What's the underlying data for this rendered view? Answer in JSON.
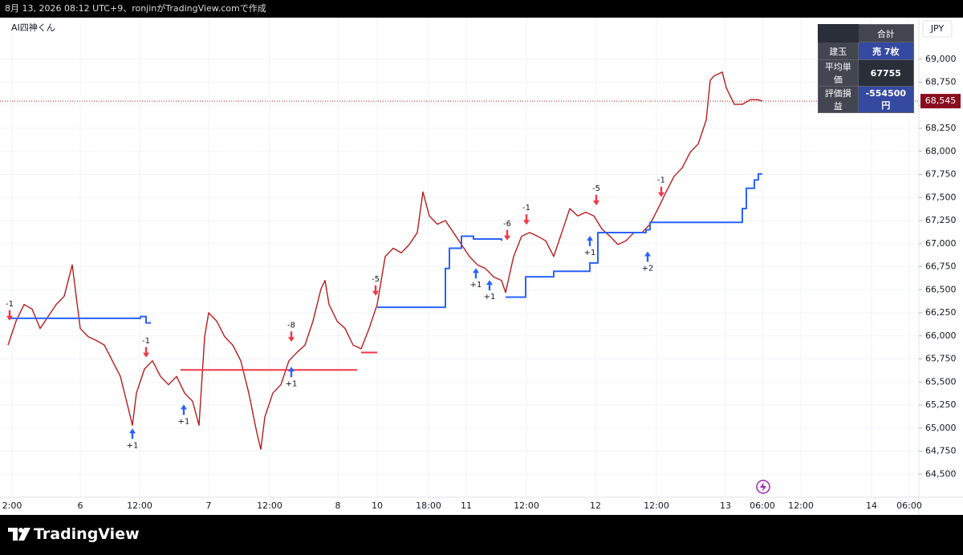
{
  "header": "8月 13, 2026 08:12 UTC+9、ronjinがTradingView.comで作成",
  "footer_brand": "TradingView",
  "chart_data": {
    "type": "line",
    "title": "AI四神くん",
    "currency": "JPY",
    "grid": true,
    "xlim": [
      0,
      229
    ],
    "xticks": [
      {
        "value": 3,
        "label": "2:00"
      },
      {
        "value": 20,
        "label": "6"
      },
      {
        "value": 34.8,
        "label": "12:00"
      },
      {
        "value": 52,
        "label": "7"
      },
      {
        "value": 67.2,
        "label": "12:00"
      },
      {
        "value": 84.2,
        "label": "8"
      },
      {
        "value": 94,
        "label": "10"
      },
      {
        "value": 106.8,
        "label": "18:00"
      },
      {
        "value": 116.2,
        "label": "11"
      },
      {
        "value": 131.2,
        "label": "12:00"
      },
      {
        "value": 148.4,
        "label": "12"
      },
      {
        "value": 163.6,
        "label": "12:00"
      },
      {
        "value": 180.8,
        "label": "13"
      },
      {
        "value": 190,
        "label": "06:00"
      },
      {
        "value": 199.6,
        "label": "12:00"
      },
      {
        "value": 217.2,
        "label": "14"
      },
      {
        "value": 226.6,
        "label": "06:00"
      }
    ],
    "ylim": [
      64250,
      69450
    ],
    "yticks": [
      {
        "value": 64500,
        "label": "64,500"
      },
      {
        "value": 64750,
        "label": "64,750"
      },
      {
        "value": 65000,
        "label": "65,000"
      },
      {
        "value": 65250,
        "label": "65,250"
      },
      {
        "value": 65500,
        "label": "65,500"
      },
      {
        "value": 65750,
        "label": "65,750"
      },
      {
        "value": 66000,
        "label": "66,000"
      },
      {
        "value": 66250,
        "label": "66,250"
      },
      {
        "value": 66500,
        "label": "66,500"
      },
      {
        "value": 66750,
        "label": "66,750"
      },
      {
        "value": 67000,
        "label": "67,000"
      },
      {
        "value": 67250,
        "label": "67,250"
      },
      {
        "value": 67500,
        "label": "67,500"
      },
      {
        "value": 67750,
        "label": "67,750"
      },
      {
        "value": 68000,
        "label": "68,000"
      },
      {
        "value": 68250,
        "label": "68,250"
      },
      {
        "value": 68500,
        "label": "68,500"
      },
      {
        "value": 68750,
        "label": "68,750"
      },
      {
        "value": 69000,
        "label": "69,000"
      }
    ],
    "series": [
      {
        "color": "#b71c1c",
        "step": false,
        "x": [
          2,
          4,
          6,
          8,
          10,
          12,
          14,
          16,
          18,
          20,
          22,
          24,
          26,
          28,
          30,
          32,
          33,
          34,
          36,
          38,
          40,
          42,
          44,
          46,
          48,
          49.6,
          51,
          52,
          54,
          56,
          58,
          60,
          62,
          64,
          65,
          66,
          68,
          70,
          72,
          74,
          76,
          78,
          80,
          81,
          82,
          84,
          86,
          88,
          90,
          92,
          94,
          96,
          98,
          100,
          102,
          104,
          105.4,
          107,
          109,
          111,
          113,
          115,
          117,
          119,
          121,
          123,
          125,
          126,
          128,
          130,
          132,
          134,
          136,
          138,
          140,
          142,
          144,
          146,
          148,
          150,
          152,
          154,
          156,
          158,
          160,
          162,
          164,
          166,
          168,
          170,
          172,
          174,
          176,
          177,
          178,
          180,
          181,
          183,
          185,
          187,
          189,
          190
        ],
        "values": [
          65900,
          66160,
          66340,
          66290,
          66080,
          66210,
          66340,
          66430,
          66770,
          66080,
          65990,
          65950,
          65900,
          65730,
          65560,
          65210,
          65030,
          65380,
          65640,
          65730,
          65560,
          65470,
          65560,
          65380,
          65290,
          65030,
          65990,
          66250,
          66160,
          65990,
          65900,
          65730,
          65380,
          64950,
          64770,
          65120,
          65380,
          65470,
          65730,
          65820,
          65900,
          66160,
          66510,
          66600,
          66340,
          66160,
          66080,
          65900,
          65860,
          66080,
          66340,
          66860,
          66950,
          66900,
          66990,
          67120,
          67560,
          67300,
          67210,
          67250,
          67120,
          66990,
          66860,
          66770,
          66730,
          66640,
          66600,
          66470,
          66860,
          67080,
          67120,
          67080,
          67030,
          66860,
          67120,
          67380,
          67300,
          67340,
          67300,
          67160,
          67080,
          66990,
          67030,
          67120,
          67120,
          67210,
          67380,
          67560,
          67730,
          67820,
          67990,
          68080,
          68340,
          68770,
          68820,
          68860,
          68690,
          68510,
          68510,
          68560,
          68560,
          68545
        ]
      },
      {
        "color": "#2962ff",
        "step": true,
        "x": [
          2,
          35,
          36.4,
          37.6,
          null,
          94,
          111,
          112,
          115,
          118,
          125,
          null,
          126,
          131,
          138,
          147,
          149,
          161,
          162,
          184,
          185,
          186,
          188,
          189,
          190
        ],
        "values": [
          66190,
          66210,
          66140,
          66140,
          null,
          66310,
          66730,
          66950,
          67080,
          67050,
          67030,
          null,
          66420,
          66640,
          66700,
          66790,
          67120,
          67150,
          67230,
          67230,
          67380,
          67600,
          67690,
          67755,
          67755
        ]
      },
      {
        "color": "#f23645",
        "step": true,
        "x": [
          45,
          89,
          null,
          90,
          94
        ],
        "values": [
          65630,
          65630,
          null,
          65820,
          65820
        ]
      }
    ],
    "last_price": {
      "value": 68545,
      "label": "68,545"
    },
    "signals": [
      {
        "x": 2.4,
        "price": 66130,
        "label": "-1",
        "side": "sell"
      },
      {
        "x": 33,
        "price": 65030,
        "label": "+1",
        "side": "buy"
      },
      {
        "x": 36.4,
        "price": 65730,
        "label": "-1",
        "side": "sell"
      },
      {
        "x": 45.8,
        "price": 65290,
        "label": "+1",
        "side": "buy"
      },
      {
        "x": 72.6,
        "price": 65900,
        "label": "-8",
        "side": "sell"
      },
      {
        "x": 72.6,
        "price": 65700,
        "label": "+1",
        "side": "buy"
      },
      {
        "x": 93.6,
        "price": 66400,
        "label": "-5",
        "side": "sell"
      },
      {
        "x": 118.6,
        "price": 66770,
        "label": "+1",
        "side": "buy"
      },
      {
        "x": 122,
        "price": 66640,
        "label": "+1",
        "side": "buy"
      },
      {
        "x": 126.4,
        "price": 67000,
        "label": "-6",
        "side": "sell"
      },
      {
        "x": 131.2,
        "price": 67170,
        "label": "-1",
        "side": "sell"
      },
      {
        "x": 147,
        "price": 67120,
        "label": "+1",
        "side": "buy"
      },
      {
        "x": 148.6,
        "price": 67380,
        "label": "-5",
        "side": "sell"
      },
      {
        "x": 161.4,
        "price": 66950,
        "label": "+2",
        "side": "buy"
      },
      {
        "x": 164.8,
        "price": 67470,
        "label": "-1",
        "side": "sell"
      }
    ],
    "position_table": {
      "header": "合計",
      "rows": [
        [
          "建玉",
          "売 7枚"
        ],
        [
          "平均単価",
          "67755"
        ],
        [
          "評価損益",
          "-554500円"
        ]
      ]
    }
  }
}
